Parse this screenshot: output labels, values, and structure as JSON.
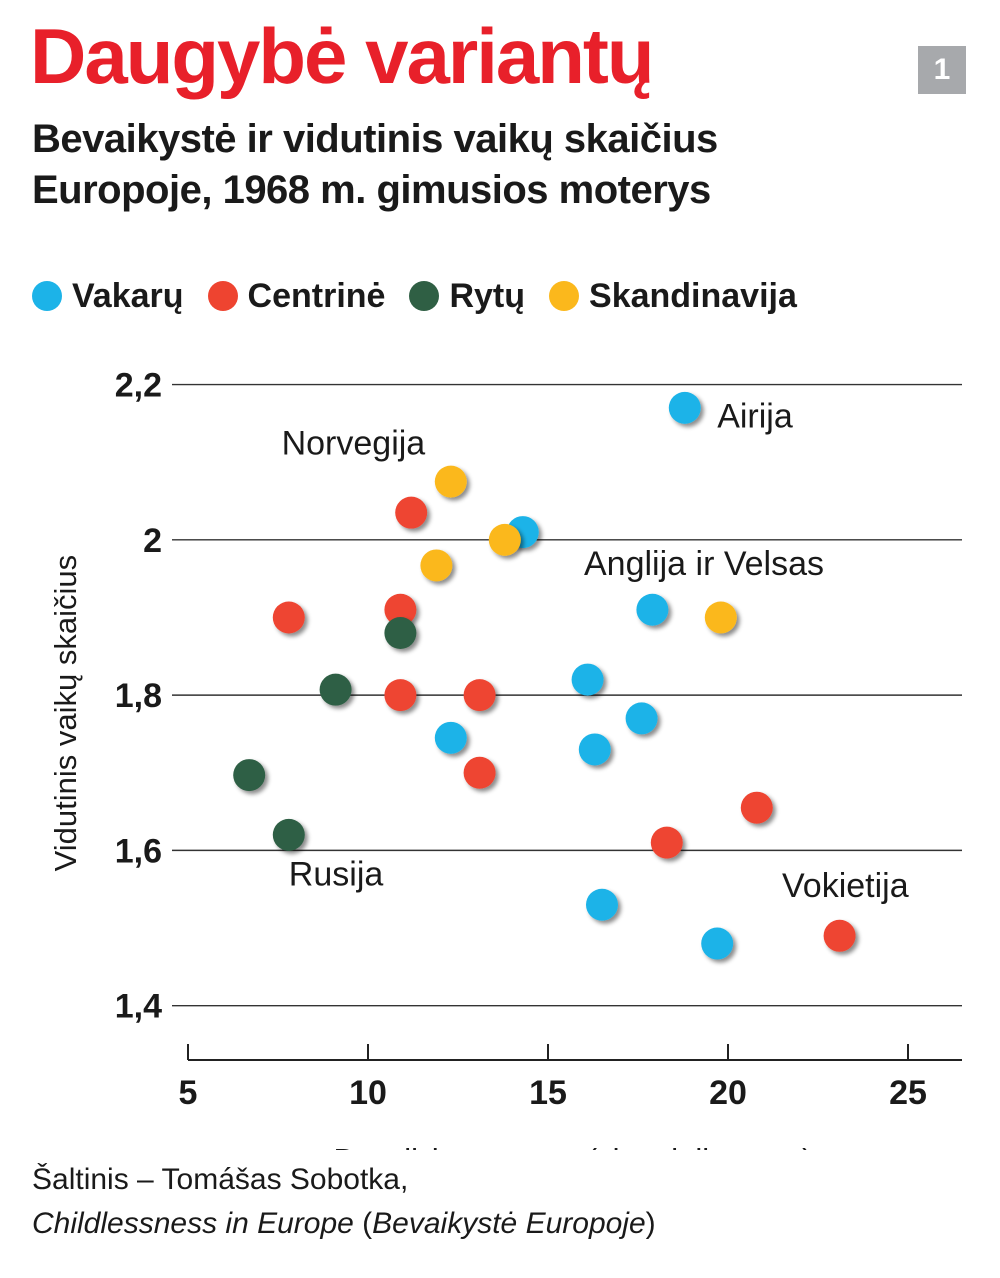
{
  "header": {
    "title": "Daugybė variantų",
    "badge": "1",
    "subtitle_line1": "Bevaikystė ir vidutinis vaikų skaičius",
    "subtitle_line2": "Europoje, 1968 m. gimusios moterys"
  },
  "legend": [
    {
      "label": "Vakarų",
      "color": "#1cb3e8"
    },
    {
      "label": "Centrinė",
      "color": "#ee4430"
    },
    {
      "label": "Rytų",
      "color": "#2f5f44"
    },
    {
      "label": "Skandinavija",
      "color": "#fbb81c"
    }
  ],
  "source": {
    "prefix": "Šaltinis – Tomášas Sobotka,",
    "book_title": "Childlessness in Europe",
    "open_paren": " (",
    "book_title_lt": "Bevaikystė Europoje",
    "close_paren": ")"
  },
  "chart_data": {
    "type": "scatter",
    "xlabel": "Bevaikės moterys (visų dalis proc.)",
    "ylabel": "Vidutinis vaikų skaičius",
    "xlim": [
      5,
      26.5
    ],
    "ylim": [
      1.33,
      2.26
    ],
    "x_ticks": [
      5,
      10,
      15,
      20,
      25
    ],
    "x_tick_labels": [
      "5",
      "10",
      "15",
      "20",
      "25"
    ],
    "y_ticks": [
      1.4,
      1.6,
      1.8,
      2.0,
      2.2
    ],
    "y_tick_labels": [
      "1,4",
      "1,6",
      "1,8",
      "2",
      "2,2"
    ],
    "grid": "horizontal",
    "legend_position": "top",
    "series": [
      {
        "name": "Vakarų",
        "color": "#1cb3e8",
        "points": [
          {
            "x": 18.8,
            "y": 2.17
          },
          {
            "x": 14.3,
            "y": 2.01
          },
          {
            "x": 17.9,
            "y": 1.91
          },
          {
            "x": 16.1,
            "y": 1.82
          },
          {
            "x": 17.6,
            "y": 1.77
          },
          {
            "x": 12.3,
            "y": 1.745
          },
          {
            "x": 16.3,
            "y": 1.73
          },
          {
            "x": 16.5,
            "y": 1.53
          },
          {
            "x": 19.7,
            "y": 1.48
          }
        ]
      },
      {
        "name": "Centrinė",
        "color": "#ee4430",
        "points": [
          {
            "x": 11.2,
            "y": 2.035
          },
          {
            "x": 10.9,
            "y": 1.91
          },
          {
            "x": 7.8,
            "y": 1.9
          },
          {
            "x": 10.9,
            "y": 1.8
          },
          {
            "x": 13.1,
            "y": 1.8
          },
          {
            "x": 13.1,
            "y": 1.7
          },
          {
            "x": 20.8,
            "y": 1.655
          },
          {
            "x": 18.3,
            "y": 1.61
          },
          {
            "x": 23.1,
            "y": 1.49
          }
        ]
      },
      {
        "name": "Rytų",
        "color": "#2f5f44",
        "points": [
          {
            "x": 10.9,
            "y": 1.88
          },
          {
            "x": 9.1,
            "y": 1.807
          },
          {
            "x": 6.7,
            "y": 1.697
          },
          {
            "x": 7.8,
            "y": 1.62
          }
        ]
      },
      {
        "name": "Skandinavija",
        "color": "#fbb81c",
        "points": [
          {
            "x": 12.3,
            "y": 2.075
          },
          {
            "x": 13.8,
            "y": 2.0
          },
          {
            "x": 11.9,
            "y": 1.967
          },
          {
            "x": 19.8,
            "y": 1.9
          }
        ]
      }
    ],
    "annotations": [
      {
        "text": "Airija",
        "x": 19.7,
        "y": 2.145,
        "anchor": "start"
      },
      {
        "text": "Norvegija",
        "x": 7.6,
        "y": 2.11,
        "anchor": "start"
      },
      {
        "text": "Anglija ir Velsas",
        "x": 16.0,
        "y": 1.955,
        "anchor": "start"
      },
      {
        "text": "Rusija",
        "x": 7.8,
        "y": 1.555,
        "anchor": "start"
      },
      {
        "text": "Vokietija",
        "x": 21.5,
        "y": 1.54,
        "anchor": "start"
      }
    ]
  }
}
